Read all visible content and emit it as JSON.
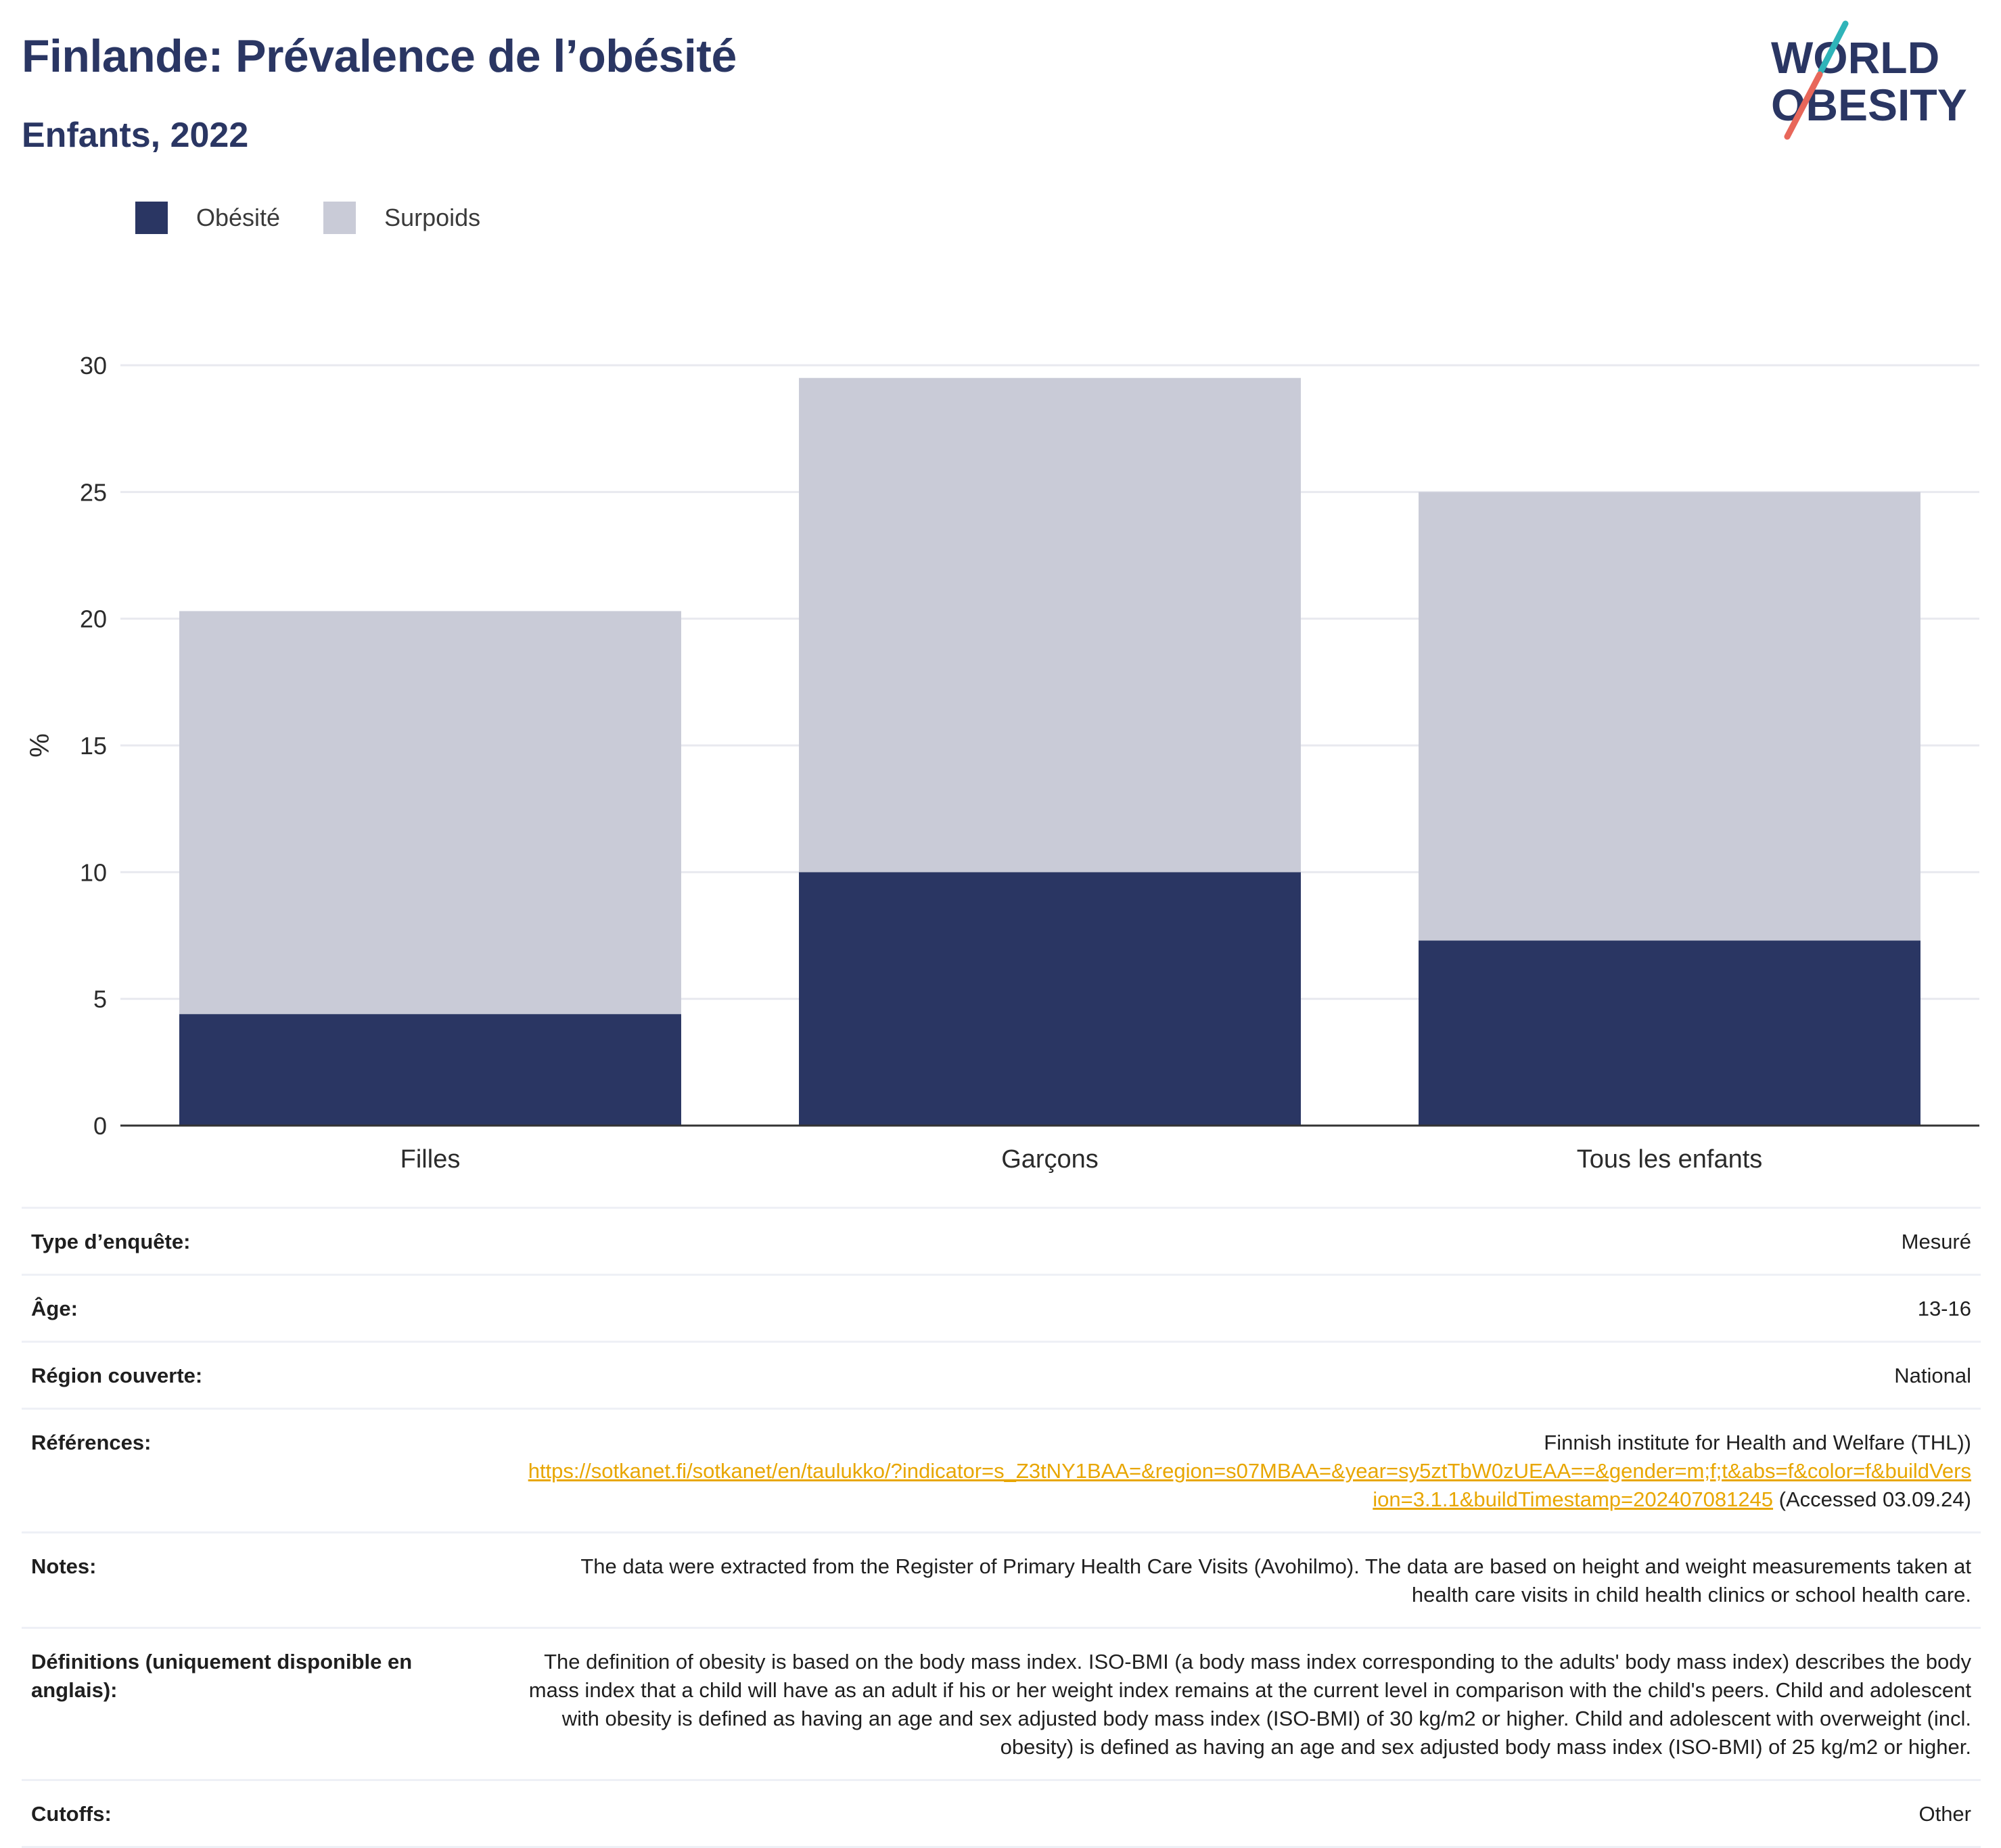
{
  "header": {
    "title": "Finlande: Prévalence de l’obésité",
    "subtitle": "Enfants, 2022"
  },
  "logo": {
    "line1": "WORLD",
    "line2": "OBESITY"
  },
  "colors": {
    "obesity": "#2a3663",
    "overweight": "#c9cbd7",
    "title": "#2a3663",
    "link": "#e8a600",
    "logo_slash_top": "#2fb4b9",
    "logo_slash_bottom": "#e8675a"
  },
  "legend": [
    {
      "label": "Obésité",
      "color": "#2a3663"
    },
    {
      "label": "Surpoids",
      "color": "#c9cbd7"
    }
  ],
  "chart_data": {
    "type": "bar",
    "stacked": true,
    "categories": [
      "Filles",
      "Garçons",
      "Tous les enfants"
    ],
    "series": [
      {
        "name": "Obésité",
        "values": [
          4.4,
          10.0,
          7.3
        ]
      },
      {
        "name": "Surpoids",
        "values": [
          15.9,
          19.5,
          17.7
        ]
      }
    ],
    "totals": [
      20.3,
      29.5,
      25.0
    ],
    "ylabel": "%",
    "ylim": [
      0,
      30
    ],
    "yticks": [
      0,
      5,
      10,
      15,
      20,
      25,
      30
    ],
    "grid": true,
    "legend_position": "top-left"
  },
  "info": {
    "survey_type": {
      "label": "Type d’enquête:",
      "value": "Mesuré"
    },
    "age": {
      "label": "Âge:",
      "value": "13-16"
    },
    "region": {
      "label": "Région couverte:",
      "value": "National"
    },
    "references": {
      "label": "Références:",
      "source": "Finnish institute for Health and Welfare (THL))",
      "link": "https://sotkanet.fi/sotkanet/en/taulukko/?indicator=s_Z3tNY1BAA=&region=s07MBAA=&year=sy5ztTbW0zUEAA==&gender=m;f;t&abs=f&color=f&buildVersion=3.1.1&buildTimestamp=202407081245",
      "accessed": " (Accessed 03.09.24)"
    },
    "notes": {
      "label": "Notes:",
      "value": "The data were extracted from the Register of Primary Health Care Visits (Avohilmo). The data are based on height and weight measurements taken at health care visits in child health clinics or school health care."
    },
    "definitions": {
      "label": "Définitions (uniquement disponible en anglais):",
      "value": "The definition of obesity is based on the body mass index. ISO-BMI (a body mass index corresponding to the adults' body mass index) describes the body mass index that a child will have as an adult if his or her weight index remains at the current level in comparison with the child's peers. Child and adolescent with obesity is defined as having an age and sex adjusted body mass index (ISO-BMI) of 30 kg/m2 or higher. Child and adolescent with overweight (incl. obesity) is defined as having an age and sex adjusted body mass index (ISO-BMI) of 25 kg/m2 or higher."
    },
    "cutoffs": {
      "label": "Cutoffs:",
      "value": "Other"
    }
  }
}
